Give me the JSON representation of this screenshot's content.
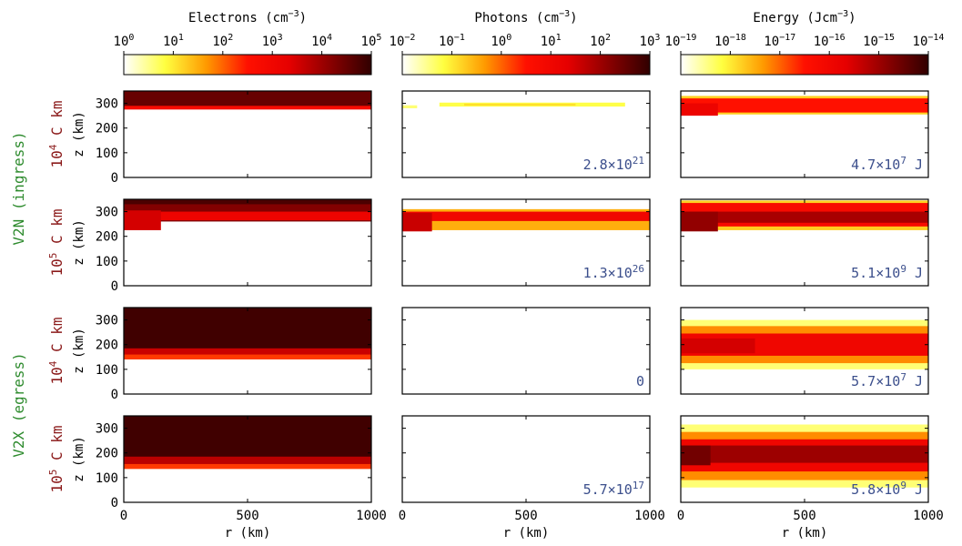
{
  "colors": {
    "colormap": [
      "#ffffff",
      "#ffff40",
      "#ff9a00",
      "#ff1000",
      "#e60000",
      "#8b0000",
      "#300000"
    ],
    "row_group_label": "#2e8b2e",
    "row_label": "#8b1a1a",
    "annotation": "#3c4f8c"
  },
  "chart_data": {
    "type": "heatmap",
    "colorbars": [
      {
        "title": "Electrons (cm",
        "title_exp": "−3",
        "title_close": ")",
        "ticks": [
          {
            "base": "10",
            "exp": "0"
          },
          {
            "base": "10",
            "exp": "1"
          },
          {
            "base": "10",
            "exp": "2"
          },
          {
            "base": "10",
            "exp": "3"
          },
          {
            "base": "10",
            "exp": "4"
          },
          {
            "base": "10",
            "exp": "5"
          }
        ]
      },
      {
        "title": "Photons (cm",
        "title_exp": "−3",
        "title_close": ")",
        "ticks": [
          {
            "base": "10",
            "exp": "−2"
          },
          {
            "base": "10",
            "exp": "−1"
          },
          {
            "base": "10",
            "exp": "0"
          },
          {
            "base": "10",
            "exp": "1"
          },
          {
            "base": "10",
            "exp": "2"
          },
          {
            "base": "10",
            "exp": "3"
          }
        ]
      },
      {
        "title": "Energy (Jcm",
        "title_exp": "−3",
        "title_close": ")",
        "ticks": [
          {
            "base": "10",
            "exp": "−19"
          },
          {
            "base": "10",
            "exp": "−18"
          },
          {
            "base": "10",
            "exp": "−17"
          },
          {
            "base": "10",
            "exp": "−16"
          },
          {
            "base": "10",
            "exp": "−15"
          },
          {
            "base": "10",
            "exp": "−14"
          }
        ]
      }
    ],
    "row_groups": [
      "V2N (ingress)",
      "V2X (egress)"
    ],
    "rows": [
      {
        "base": "10",
        "exp": "4",
        "suffix": " C km"
      },
      {
        "base": "10",
        "exp": "5",
        "suffix": " C km"
      },
      {
        "base": "10",
        "exp": "4",
        "suffix": " C km"
      },
      {
        "base": "10",
        "exp": "5",
        "suffix": " C km"
      }
    ],
    "xlabel": "r (km)",
    "ylabel": "z (km)",
    "xlim": [
      0,
      1000
    ],
    "ylim": [
      0,
      350
    ],
    "xticks": [
      "0",
      "500",
      "1000"
    ],
    "yticks": [
      "0",
      "100",
      "200",
      "300"
    ],
    "annotations": [
      [
        null,
        {
          "base": "2.8×10",
          "exp": "21",
          "suffix": ""
        },
        {
          "base": "4.7×10",
          "exp": "7",
          "suffix": " J"
        }
      ],
      [
        null,
        {
          "base": "1.3×10",
          "exp": "26",
          "suffix": ""
        },
        {
          "base": "5.1×10",
          "exp": "9",
          "suffix": " J"
        }
      ],
      [
        null,
        {
          "base": "0",
          "exp": "",
          "suffix": ""
        },
        {
          "base": "5.7×10",
          "exp": "7",
          "suffix": " J"
        }
      ],
      [
        null,
        {
          "base": "5.7×10",
          "exp": "17",
          "suffix": ""
        },
        {
          "base": "5.8×10",
          "exp": "9",
          "suffix": " J"
        }
      ]
    ],
    "panels": [
      [
        {
          "layers": [
            {
              "zlo": 280,
              "zhi": 350,
              "c": 0.9
            },
            {
              "zlo": 275,
              "zhi": 290,
              "c": 0.55
            }
          ]
        },
        {
          "layers": [
            {
              "xlo": 0,
              "xhi": 60,
              "zlo": 280,
              "zhi": 292,
              "c": 0.12
            },
            {
              "xlo": 150,
              "xhi": 900,
              "zlo": 287,
              "zhi": 303,
              "c": 0.16
            },
            {
              "xlo": 250,
              "xhi": 700,
              "zlo": 291,
              "zhi": 299,
              "c": 0.22
            }
          ]
        },
        {
          "layers": [
            {
              "zlo": 255,
              "zhi": 330,
              "c": 0.25
            },
            {
              "zlo": 263,
              "zhi": 320,
              "c": 0.5
            },
            {
              "xlo": 0,
              "xhi": 150,
              "zlo": 250,
              "zhi": 300,
              "c": 0.62
            }
          ]
        }
      ],
      [
        {
          "layers": [
            {
              "zlo": 260,
              "zhi": 350,
              "c": 0.85
            },
            {
              "zlo": 265,
              "zhi": 300,
              "c": 0.62
            },
            {
              "xlo": 0,
              "xhi": 150,
              "zlo": 225,
              "zhi": 305,
              "c": 0.7
            },
            {
              "zlo": 330,
              "zhi": 350,
              "c": 0.95
            }
          ]
        },
        {
          "layers": [
            {
              "zlo": 225,
              "zhi": 310,
              "c": 0.3
            },
            {
              "zlo": 262,
              "zhi": 300,
              "c": 0.6
            },
            {
              "xlo": 0,
              "xhi": 120,
              "zlo": 220,
              "zhi": 295,
              "c": 0.72
            }
          ]
        },
        {
          "layers": [
            {
              "zlo": 225,
              "zhi": 345,
              "c": 0.25
            },
            {
              "zlo": 240,
              "zhi": 335,
              "c": 0.55
            },
            {
              "zlo": 255,
              "zhi": 300,
              "c": 0.78
            },
            {
              "xlo": 0,
              "xhi": 150,
              "zlo": 220,
              "zhi": 300,
              "c": 0.82
            }
          ]
        }
      ],
      [
        {
          "layers": [
            {
              "zlo": 140,
              "zhi": 350,
              "c": 0.45
            },
            {
              "zlo": 160,
              "zhi": 350,
              "c": 0.72
            },
            {
              "zlo": 185,
              "zhi": 350,
              "c": 0.97
            }
          ]
        },
        {
          "layers": []
        },
        {
          "layers": [
            {
              "zlo": 100,
              "zhi": 300,
              "c": 0.12
            },
            {
              "zlo": 125,
              "zhi": 275,
              "c": 0.35
            },
            {
              "zlo": 155,
              "zhi": 245,
              "c": 0.6
            },
            {
              "xlo": 0,
              "xhi": 300,
              "zlo": 165,
              "zhi": 225,
              "c": 0.7
            }
          ]
        }
      ],
      [
        {
          "layers": [
            {
              "zlo": 135,
              "zhi": 350,
              "c": 0.45
            },
            {
              "zlo": 155,
              "zhi": 350,
              "c": 0.75
            },
            {
              "zlo": 185,
              "zhi": 350,
              "c": 0.97
            }
          ]
        },
        {
          "layers": []
        },
        {
          "layers": [
            {
              "zlo": 60,
              "zhi": 315,
              "c": 0.12
            },
            {
              "zlo": 90,
              "zhi": 285,
              "c": 0.35
            },
            {
              "zlo": 125,
              "zhi": 255,
              "c": 0.6
            },
            {
              "zlo": 160,
              "zhi": 230,
              "c": 0.8
            },
            {
              "xlo": 0,
              "xhi": 120,
              "zlo": 150,
              "zhi": 230,
              "c": 0.88
            }
          ]
        }
      ]
    ]
  }
}
